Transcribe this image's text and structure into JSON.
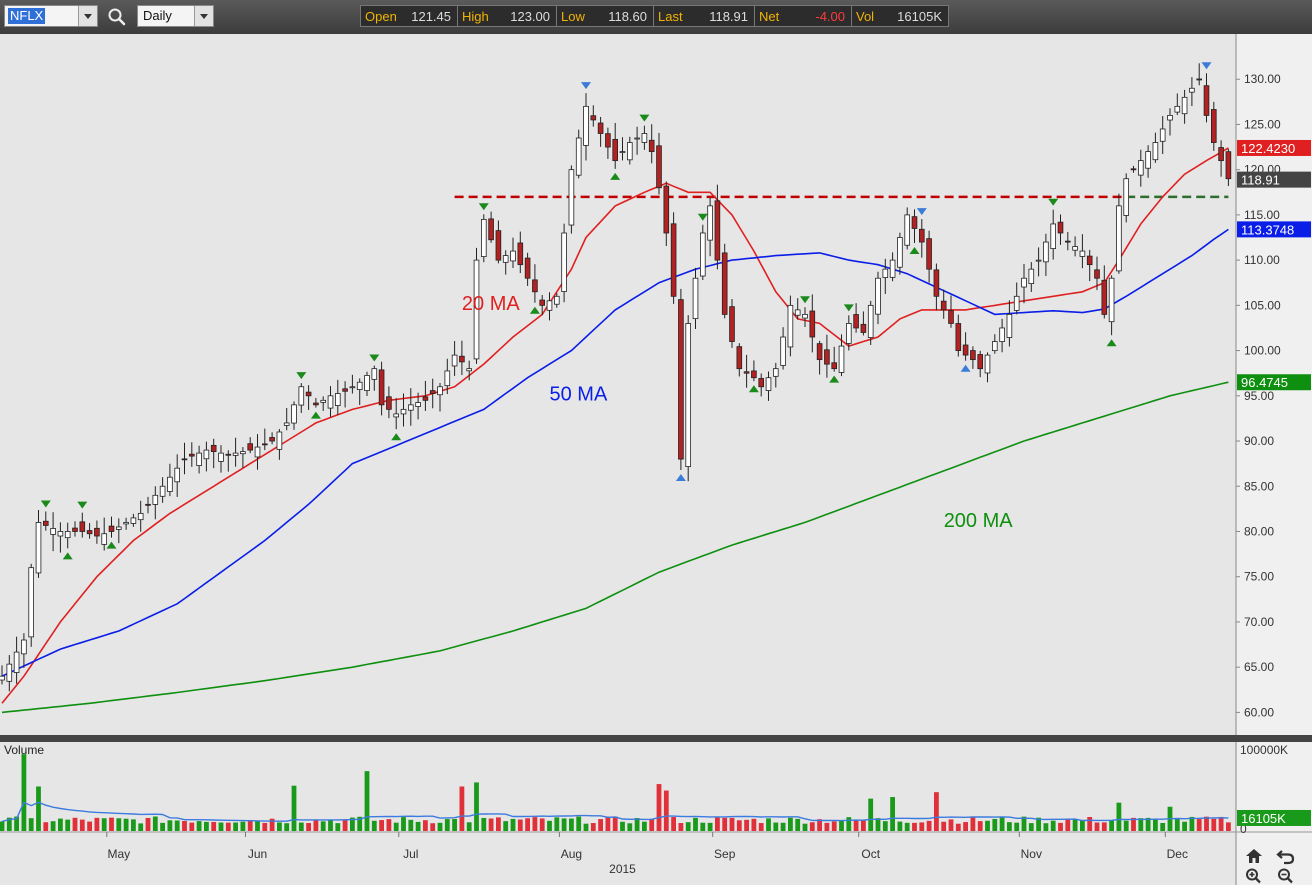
{
  "toolbar": {
    "symbol": "NFLX",
    "interval": "Daily",
    "quote": [
      {
        "label": "Open",
        "value": "121.45",
        "color": "#dddddd"
      },
      {
        "label": "High",
        "value": "123.00",
        "color": "#dddddd"
      },
      {
        "label": "Low",
        "value": "118.60",
        "color": "#dddddd"
      },
      {
        "label": "Last",
        "value": "118.91",
        "color": "#dddddd"
      },
      {
        "label": "Net",
        "value": "-4.00",
        "color": "#ff3b3b"
      },
      {
        "label": "Vol",
        "value": "16105K",
        "color": "#dddddd"
      }
    ]
  },
  "colors": {
    "up_candle": "#ffffff",
    "down_candle": "#b22222",
    "ma20": "#e02020",
    "ma50": "#0a1ee8",
    "ma200": "#0f8f0f",
    "resistance": "#c00000",
    "volume_up": "#1a9a1a",
    "volume_down": "#e0303a",
    "volume_ma": "#3c7be0"
  },
  "chart_data": {
    "type": "candlestick",
    "symbol": "NFLX",
    "price_axis": {
      "ylim": [
        57.5,
        135
      ],
      "ticks": [
        "60.00",
        "65.00",
        "70.00",
        "75.00",
        "80.00",
        "85.00",
        "90.00",
        "95.00",
        "100.00",
        "105.00",
        "110.00",
        "115.00",
        "120.00",
        "125.00",
        "130.00"
      ]
    },
    "time_axis": {
      "xlim": [
        0,
        167
      ],
      "months": [
        {
          "label": "May",
          "x": 16
        },
        {
          "label": "Jun",
          "x": 35
        },
        {
          "label": "Jul",
          "x": 56
        },
        {
          "label": "Aug",
          "x": 78
        },
        {
          "label": "Sep",
          "x": 99
        },
        {
          "label": "Oct",
          "x": 119
        },
        {
          "label": "Nov",
          "x": 141
        },
        {
          "label": "Dec",
          "x": 161
        }
      ],
      "year": {
        "label": "2015",
        "x": 85
      }
    },
    "price_series": {
      "anchors": [
        [
          0,
          64
        ],
        [
          3,
          68
        ],
        [
          4,
          76
        ],
        [
          5,
          81
        ],
        [
          8,
          80
        ],
        [
          11,
          80
        ],
        [
          13,
          79.5
        ],
        [
          15,
          80
        ],
        [
          17,
          81
        ],
        [
          19,
          82
        ],
        [
          21,
          84
        ],
        [
          23,
          86
        ],
        [
          25,
          88
        ],
        [
          28,
          89
        ],
        [
          31,
          88.5
        ],
        [
          34,
          89
        ],
        [
          37,
          90
        ],
        [
          39,
          92
        ],
        [
          41,
          96
        ],
        [
          43,
          94
        ],
        [
          45,
          95
        ],
        [
          47,
          95.5
        ],
        [
          49,
          96.5
        ],
        [
          51,
          98
        ],
        [
          52,
          94
        ],
        [
          54,
          93
        ],
        [
          56,
          94
        ],
        [
          58,
          94.5
        ],
        [
          60,
          96
        ],
        [
          62,
          99.5
        ],
        [
          64,
          98
        ],
        [
          65,
          110
        ],
        [
          66,
          114.5
        ],
        [
          68,
          110
        ],
        [
          70,
          111
        ],
        [
          72,
          108
        ],
        [
          74,
          105
        ],
        [
          76,
          106
        ],
        [
          77,
          113
        ],
        [
          78,
          120
        ],
        [
          80,
          127
        ],
        [
          82,
          124
        ],
        [
          84,
          121
        ],
        [
          86,
          123
        ],
        [
          88,
          124
        ],
        [
          89,
          122
        ],
        [
          90,
          118
        ],
        [
          91,
          113
        ],
        [
          92,
          106
        ],
        [
          93,
          88
        ],
        [
          94,
          103
        ],
        [
          96,
          113
        ],
        [
          97,
          116
        ],
        [
          98,
          110
        ],
        [
          99,
          104
        ],
        [
          101,
          98
        ],
        [
          103,
          97
        ],
        [
          104,
          96
        ],
        [
          106,
          98
        ],
        [
          108,
          105
        ],
        [
          110,
          104
        ],
        [
          112,
          99
        ],
        [
          114,
          98
        ],
        [
          116,
          103
        ],
        [
          118,
          102
        ],
        [
          120,
          108
        ],
        [
          122,
          110
        ],
        [
          124,
          115
        ],
        [
          126,
          112
        ],
        [
          127,
          109
        ],
        [
          128,
          106
        ],
        [
          130,
          103
        ],
        [
          131,
          100
        ],
        [
          133,
          99
        ],
        [
          134,
          98
        ],
        [
          136,
          101
        ],
        [
          138,
          104
        ],
        [
          140,
          108
        ],
        [
          142,
          110
        ],
        [
          144,
          114
        ],
        [
          146,
          112
        ],
        [
          148,
          111
        ],
        [
          150,
          108
        ],
        [
          151,
          104
        ],
        [
          152,
          108
        ],
        [
          153,
          116
        ],
        [
          154,
          119
        ],
        [
          156,
          121
        ],
        [
          158,
          123
        ],
        [
          160,
          126
        ],
        [
          162,
          128
        ],
        [
          163,
          129
        ],
        [
          164,
          130
        ],
        [
          165,
          126
        ],
        [
          166,
          123
        ],
        [
          167,
          121
        ],
        [
          168,
          119
        ]
      ]
    },
    "moving_averages": [
      {
        "label": "20 MA",
        "period": 20,
        "last": "122.4230",
        "label_x": 63,
        "label_y": 104.5
      },
      {
        "label": "50 MA",
        "period": 50,
        "last": "113.3748",
        "label_x": 75,
        "label_y": 94.5
      },
      {
        "label": "200 MA",
        "period": 200,
        "last": "96.4745",
        "label_x": 129,
        "label_y": 80.5
      }
    ],
    "ma_anchors": {
      "20 MA": [
        [
          0,
          61
        ],
        [
          3,
          64
        ],
        [
          8,
          70
        ],
        [
          13,
          75
        ],
        [
          18,
          79
        ],
        [
          23,
          82
        ],
        [
          28,
          84.5
        ],
        [
          33,
          87
        ],
        [
          38,
          89.5
        ],
        [
          43,
          92
        ],
        [
          48,
          93.5
        ],
        [
          53,
          94.5
        ],
        [
          58,
          95
        ],
        [
          62,
          96
        ],
        [
          66,
          98.5
        ],
        [
          70,
          101.5
        ],
        [
          74,
          104
        ],
        [
          78,
          109
        ],
        [
          80,
          112.5
        ],
        [
          84,
          116
        ],
        [
          88,
          117.5
        ],
        [
          91,
          118.5
        ],
        [
          94,
          117.5
        ],
        [
          97,
          117.5
        ],
        [
          100,
          115
        ],
        [
          103,
          111
        ],
        [
          106,
          106.5
        ],
        [
          109,
          103.5
        ],
        [
          112,
          103
        ],
        [
          116,
          100.5
        ],
        [
          120,
          101.5
        ],
        [
          123,
          103.5
        ],
        [
          126,
          104.5
        ],
        [
          129,
          104.5
        ],
        [
          132,
          104.5
        ],
        [
          136,
          105
        ],
        [
          140,
          105.5
        ],
        [
          144,
          106
        ],
        [
          148,
          106.5
        ],
        [
          151,
          107.5
        ],
        [
          153,
          110
        ],
        [
          156,
          114
        ],
        [
          159,
          117
        ],
        [
          162,
          119.5
        ],
        [
          165,
          121
        ],
        [
          168,
          122.4
        ]
      ],
      "50 MA": [
        [
          0,
          64
        ],
        [
          8,
          67
        ],
        [
          16,
          69
        ],
        [
          24,
          72
        ],
        [
          30,
          75.5
        ],
        [
          36,
          79
        ],
        [
          42,
          83
        ],
        [
          48,
          87.5
        ],
        [
          54,
          89.5
        ],
        [
          60,
          91.5
        ],
        [
          66,
          93.5
        ],
        [
          72,
          97
        ],
        [
          78,
          100
        ],
        [
          84,
          104.5
        ],
        [
          90,
          107.5
        ],
        [
          95,
          109
        ],
        [
          100,
          110
        ],
        [
          106,
          110.5
        ],
        [
          112,
          110.8
        ],
        [
          116,
          110
        ],
        [
          120,
          109.5
        ],
        [
          124,
          108.5
        ],
        [
          128,
          107
        ],
        [
          132,
          105.5
        ],
        [
          136,
          104
        ],
        [
          140,
          104.2
        ],
        [
          144,
          104.4
        ],
        [
          148,
          104.2
        ],
        [
          151,
          104.6
        ],
        [
          154,
          106
        ],
        [
          157,
          107.5
        ],
        [
          160,
          109
        ],
        [
          163,
          110.5
        ],
        [
          166,
          112.3
        ],
        [
          168,
          113.4
        ]
      ],
      "200 MA": [
        [
          0,
          60
        ],
        [
          12,
          61
        ],
        [
          24,
          62.2
        ],
        [
          36,
          63.5
        ],
        [
          48,
          65
        ],
        [
          60,
          66.8
        ],
        [
          70,
          69
        ],
        [
          80,
          71.5
        ],
        [
          90,
          75.5
        ],
        [
          100,
          78.5
        ],
        [
          110,
          81
        ],
        [
          120,
          84
        ],
        [
          130,
          87
        ],
        [
          140,
          90
        ],
        [
          150,
          92.5
        ],
        [
          160,
          95
        ],
        [
          168,
          96.5
        ]
      ]
    },
    "resistance_level": 117,
    "resistance_range": [
      62,
      168
    ],
    "projection_from": 154,
    "swing_markers": [
      {
        "x": 6,
        "type": "high",
        "color": "green"
      },
      {
        "x": 9,
        "type": "low",
        "color": "green"
      },
      {
        "x": 11,
        "type": "high",
        "color": "green"
      },
      {
        "x": 15,
        "type": "low",
        "color": "green"
      },
      {
        "x": 41,
        "type": "high",
        "color": "green"
      },
      {
        "x": 43,
        "type": "low",
        "color": "green"
      },
      {
        "x": 51,
        "type": "high",
        "color": "green"
      },
      {
        "x": 54,
        "type": "low",
        "color": "green"
      },
      {
        "x": 66,
        "type": "high",
        "color": "green"
      },
      {
        "x": 73,
        "type": "low",
        "color": "green"
      },
      {
        "x": 80,
        "type": "high",
        "color": "blue"
      },
      {
        "x": 84,
        "type": "low",
        "color": "green"
      },
      {
        "x": 88,
        "type": "high",
        "color": "green"
      },
      {
        "x": 93,
        "type": "low",
        "color": "blue"
      },
      {
        "x": 96,
        "type": "high",
        "color": "green"
      },
      {
        "x": 103,
        "type": "low",
        "color": "green"
      },
      {
        "x": 110,
        "type": "high",
        "color": "green"
      },
      {
        "x": 114,
        "type": "low",
        "color": "green"
      },
      {
        "x": 116,
        "type": "high",
        "color": "green"
      },
      {
        "x": 125,
        "type": "low",
        "color": "green"
      },
      {
        "x": 126,
        "type": "high",
        "color": "blue"
      },
      {
        "x": 132,
        "type": "low",
        "color": "blue"
      },
      {
        "x": 144,
        "type": "high",
        "color": "green"
      },
      {
        "x": 152,
        "type": "low",
        "color": "green"
      },
      {
        "x": 165,
        "type": "high",
        "color": "blue"
      }
    ],
    "price_labels": [
      {
        "value": "122.4230",
        "bg": "#e02020",
        "fg": "#ffffff",
        "y": 122.4
      },
      {
        "value": "118.91",
        "bg": "#444444",
        "fg": "#ffffff",
        "y": 118.9
      },
      {
        "value": "113.3748",
        "bg": "#0a1ee8",
        "fg": "#ffffff",
        "y": 113.4
      },
      {
        "value": "96.4745",
        "bg": "#0f8f0f",
        "fg": "#ffffff",
        "y": 96.5
      }
    ],
    "volume": {
      "title": "Volume",
      "ticks": [
        "100000K",
        "0"
      ],
      "max": 110000,
      "last": "16105K",
      "spikes": [
        [
          3,
          95000
        ],
        [
          5,
          55000
        ],
        [
          40,
          56000
        ],
        [
          50,
          74000
        ],
        [
          63,
          55000
        ],
        [
          65,
          60000
        ],
        [
          90,
          58000
        ],
        [
          91,
          50000
        ],
        [
          119,
          40000
        ],
        [
          122,
          42000
        ],
        [
          128,
          48000
        ],
        [
          153,
          35000
        ],
        [
          160,
          30000
        ]
      ]
    }
  }
}
